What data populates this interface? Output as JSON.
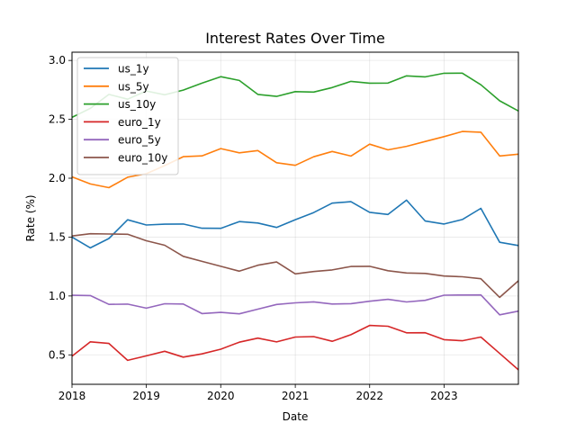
{
  "chart_data": {
    "type": "line",
    "title": "Interest Rates Over Time",
    "xlabel": "Date",
    "ylabel": "Rate (%)",
    "xlim": [
      "2018-01-01",
      "2024-01-01"
    ],
    "ylim": [
      0.25,
      3.07
    ],
    "x_ticks": [
      "2018",
      "2019",
      "2020",
      "2021",
      "2022",
      "2023"
    ],
    "y_ticks": [
      "0.5",
      "1.0",
      "1.5",
      "2.0",
      "2.5",
      "3.0"
    ],
    "grid": true,
    "legend_position": "top-left",
    "x": [
      "2018-01",
      "2018-04",
      "2018-07",
      "2018-10",
      "2019-01",
      "2019-04",
      "2019-07",
      "2019-10",
      "2020-01",
      "2020-04",
      "2020-07",
      "2020-10",
      "2021-01",
      "2021-04",
      "2021-07",
      "2021-10",
      "2022-01",
      "2022-04",
      "2022-07",
      "2022-10",
      "2023-01",
      "2023-04",
      "2023-07",
      "2023-10",
      "2024-01"
    ],
    "series": [
      {
        "name": "us_1y",
        "color": "#1f77b4",
        "values": [
          1.5,
          1.4,
          1.5,
          1.64,
          1.6,
          1.62,
          1.6,
          1.58,
          1.58,
          1.62,
          1.63,
          1.58,
          1.64,
          1.72,
          1.78,
          1.8,
          1.72,
          1.68,
          1.82,
          1.64,
          1.6,
          1.66,
          1.74,
          1.45,
          1.44
        ]
      },
      {
        "name": "us_5y",
        "color": "#ff7f0e",
        "values": [
          2.0,
          1.96,
          1.92,
          2.0,
          2.05,
          2.1,
          2.18,
          2.2,
          2.24,
          2.22,
          2.24,
          2.12,
          2.12,
          2.18,
          2.22,
          2.2,
          2.28,
          2.24,
          2.28,
          2.3,
          2.36,
          2.4,
          2.38,
          2.2,
          2.2
        ]
      },
      {
        "name": "us_10y",
        "color": "#2ca02c",
        "values": [
          2.52,
          2.6,
          2.7,
          2.68,
          2.74,
          2.7,
          2.76,
          2.8,
          2.86,
          2.84,
          2.7,
          2.7,
          2.74,
          2.72,
          2.78,
          2.82,
          2.8,
          2.82,
          2.86,
          2.86,
          2.9,
          2.88,
          2.8,
          2.66,
          2.56
        ]
      },
      {
        "name": "euro_1y",
        "color": "#d62728",
        "values": [
          0.5,
          0.6,
          0.6,
          0.46,
          0.48,
          0.54,
          0.48,
          0.5,
          0.56,
          0.6,
          0.64,
          0.62,
          0.64,
          0.66,
          0.62,
          0.66,
          0.76,
          0.74,
          0.68,
          0.7,
          0.62,
          0.62,
          0.66,
          0.5,
          0.38
        ]
      },
      {
        "name": "euro_5y",
        "color": "#9467bd",
        "values": [
          1.0,
          1.0,
          0.94,
          0.92,
          0.9,
          0.94,
          0.92,
          0.86,
          0.86,
          0.84,
          0.9,
          0.92,
          0.94,
          0.96,
          0.92,
          0.94,
          0.96,
          0.96,
          0.96,
          0.96,
          1.0,
          1.02,
          1.0,
          0.84,
          0.88
        ]
      },
      {
        "name": "euro_10y",
        "color": "#8c564b",
        "values": [
          1.5,
          1.54,
          1.52,
          1.52,
          1.48,
          1.42,
          1.34,
          1.3,
          1.24,
          1.22,
          1.26,
          1.28,
          1.2,
          1.2,
          1.22,
          1.26,
          1.24,
          1.22,
          1.2,
          1.18,
          1.18,
          1.16,
          1.14,
          1.0,
          1.12
        ]
      }
    ]
  }
}
